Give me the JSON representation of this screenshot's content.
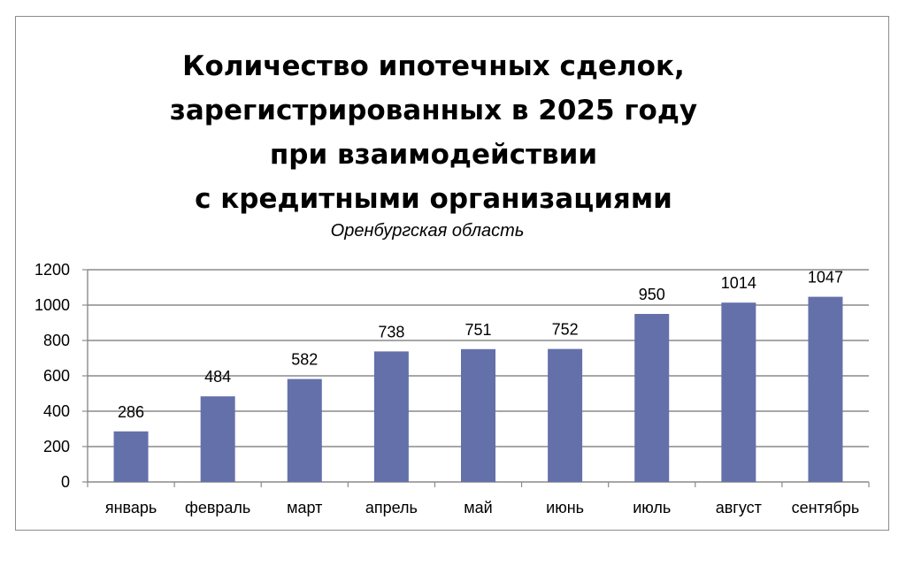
{
  "chart_data": {
    "type": "bar",
    "title_lines": [
      "Количество ипотечных сделок,",
      "зарегистрированных в 2025 году",
      "при взаимодействии",
      "с кредитными организациями"
    ],
    "subtitle": "Оренбургская область",
    "categories": [
      "январь",
      "февраль",
      "март",
      "апрель",
      "май",
      "июнь",
      "июль",
      "август",
      "сентябрь"
    ],
    "values": [
      286,
      484,
      582,
      738,
      751,
      752,
      950,
      1014,
      1047
    ],
    "data_labels": [
      "286",
      "484",
      "582",
      "738",
      "751",
      "752",
      "950",
      "1014",
      "1047"
    ],
    "y_ticks": [
      "0",
      "200",
      "400",
      "600",
      "800",
      "1000",
      "1200"
    ],
    "ylim": [
      0,
      1200
    ],
    "grid": true,
    "legend": "none",
    "bar_color": "#6470aa"
  }
}
